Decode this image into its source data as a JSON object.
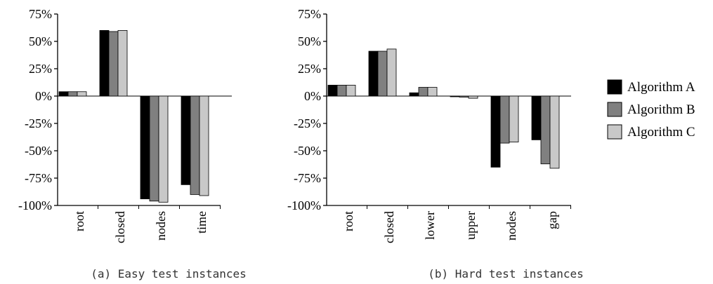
{
  "chart_data": [
    {
      "type": "bar",
      "caption": "(a) Easy test instances",
      "categories": [
        "root",
        "closed",
        "nodes",
        "time"
      ],
      "series": [
        {
          "name": "Algorithm A",
          "values": [
            4,
            60,
            -94,
            -81
          ]
        },
        {
          "name": "Algorithm B",
          "values": [
            4,
            59,
            -96,
            -90
          ]
        },
        {
          "name": "Algorithm C",
          "values": [
            4,
            60,
            -97,
            -91
          ]
        }
      ],
      "ylim": [
        -100,
        75
      ],
      "yticks": [
        "75%",
        "50%",
        "25%",
        "0%",
        "-25%",
        "-50%",
        "-75%",
        "-100%"
      ],
      "ytick_values": [
        75,
        50,
        25,
        0,
        -25,
        -50,
        -75,
        -100
      ]
    },
    {
      "type": "bar",
      "caption": "(b) Hard test instances",
      "categories": [
        "root",
        "closed",
        "lower",
        "upper",
        "nodes",
        "gap"
      ],
      "series": [
        {
          "name": "Algorithm A",
          "values": [
            10,
            41,
            3,
            0,
            -65,
            -40
          ]
        },
        {
          "name": "Algorithm B",
          "values": [
            10,
            41,
            8,
            -1,
            -43,
            -62
          ]
        },
        {
          "name": "Algorithm C",
          "values": [
            10,
            43,
            8,
            -2,
            -42,
            -66
          ]
        }
      ],
      "ylim": [
        -100,
        75
      ],
      "yticks": [
        "75%",
        "50%",
        "25%",
        "0%",
        "-25%",
        "-50%",
        "-75%",
        "-100%"
      ],
      "ytick_values": [
        75,
        50,
        25,
        0,
        -25,
        -50,
        -75,
        -100
      ]
    }
  ],
  "legend": {
    "placement": "right",
    "items": [
      {
        "label": "Algorithm A",
        "color": "#000000"
      },
      {
        "label": "Algorithm B",
        "color": "#808080"
      },
      {
        "label": "Algorithm C",
        "color": "#c8c8c8"
      }
    ]
  }
}
